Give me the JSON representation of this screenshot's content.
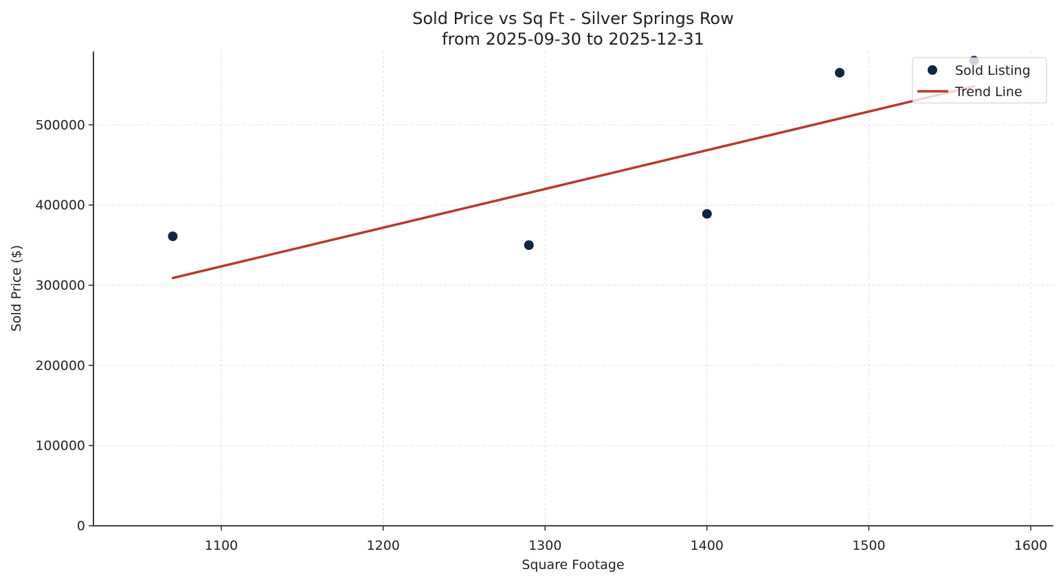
{
  "figure": {
    "title_lines": [
      "Sold Price vs Sq Ft - Silver Springs Row",
      "from 2025-09-30 to 2025-12-31"
    ],
    "background_color": "#ffffff",
    "text_color": "#1f1f1f",
    "spine_color": "#262626",
    "grid_color": "#d7d7d7"
  },
  "chart_data": {
    "type": "scatter",
    "title": "Sold Price vs Sq Ft - Silver Springs Row\nfrom 2025-09-30 to 2025-12-31",
    "xlabel": "Square Footage",
    "ylabel": "Sold Price ($)",
    "xlim": [
      1021,
      1614
    ],
    "ylim": [
      0,
      591500
    ],
    "x_ticks": [
      1100,
      1200,
      1300,
      1400,
      1500,
      1600
    ],
    "y_ticks": [
      0,
      100000,
      200000,
      300000,
      400000,
      500000
    ],
    "grid": true,
    "grid_style": "dashed",
    "legend_position": "upper right",
    "series": [
      {
        "name": "Sold Listing",
        "kind": "scatter",
        "color": "#112640",
        "marker_radius": 7,
        "x": [
          1070,
          1290,
          1400,
          1482,
          1565
        ],
        "y": [
          361000,
          350000,
          389000,
          565000,
          580000
        ]
      },
      {
        "name": "Trend Line",
        "kind": "line",
        "color": "#b63a2d",
        "line_width": 3.5,
        "x": [
          1070,
          1565
        ],
        "y": [
          309000,
          548000
        ]
      }
    ],
    "points": [
      {
        "sqft": 1070,
        "sold_price": 361000
      },
      {
        "sqft": 1290,
        "sold_price": 350000
      },
      {
        "sqft": 1400,
        "sold_price": 389000
      },
      {
        "sqft": 1482,
        "sold_price": 565000
      },
      {
        "sqft": 1565,
        "sold_price": 580000
      }
    ]
  },
  "legend": {
    "items": [
      {
        "label": "Sold Listing",
        "marker": "dot",
        "color": "#112640"
      },
      {
        "label": "Trend Line",
        "marker": "line",
        "color": "#b63a2d"
      }
    ]
  }
}
